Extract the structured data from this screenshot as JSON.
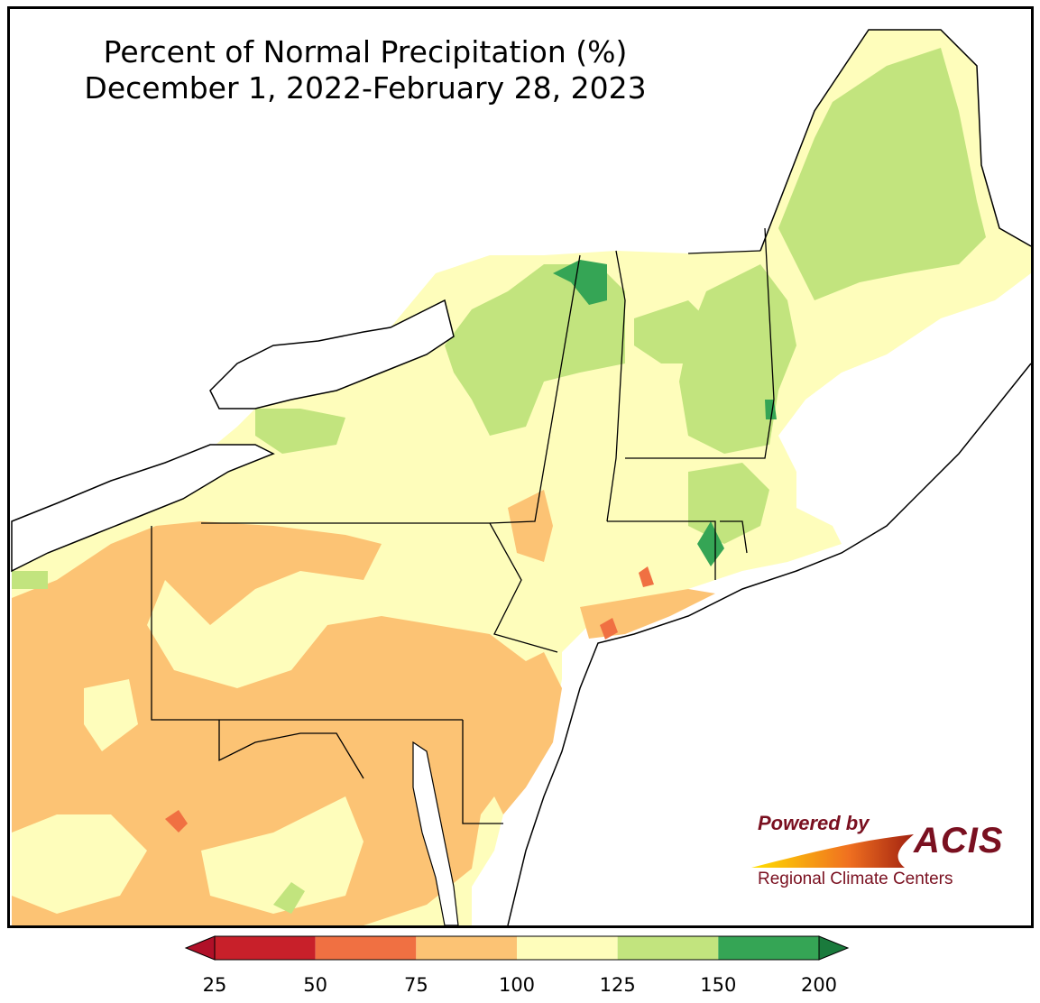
{
  "title": {
    "line1": "Percent of Normal Precipitation (%)",
    "line2": "December 1, 2022-February 28, 2023"
  },
  "logo": {
    "powered": "Powered by",
    "acis": "ACIS",
    "rcc": "Regional Climate Centers"
  },
  "legend": {
    "ticks": [
      "25",
      "50",
      "75",
      "100",
      "125",
      "150",
      "200"
    ],
    "bins": [
      {
        "range": "25-50",
        "color": "#c8202a"
      },
      {
        "range": "50-75",
        "color": "#f07042"
      },
      {
        "range": "75-100",
        "color": "#fcc374"
      },
      {
        "range": "100-125",
        "color": "#fefdbb"
      },
      {
        "range": "125-150",
        "color": "#c2e47e"
      },
      {
        "range": "150-200",
        "color": "#35a555"
      }
    ],
    "under_color": "#b01028",
    "over_color": "#1a7a3c"
  },
  "map": {
    "region": "Northeast United States",
    "colors": {
      "water": "#ffffff",
      "below_normal": "#fcc374",
      "near_normal": "#fefdbb",
      "above_normal": "#c2e47e",
      "well_above": "#35a555",
      "well_below": "#f07042"
    }
  }
}
